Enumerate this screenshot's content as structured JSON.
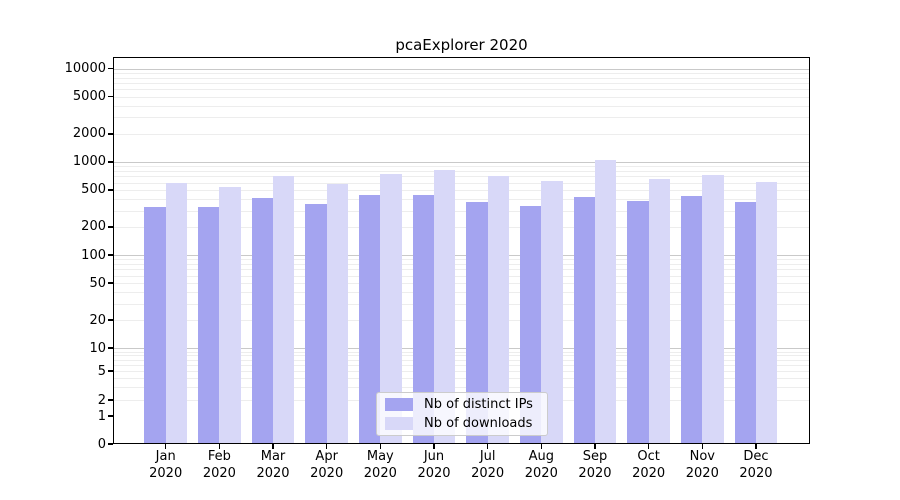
{
  "figure": {
    "title": "pcaExplorer 2020"
  },
  "chart_data": {
    "type": "bar",
    "title": "pcaExplorer 2020",
    "categories": [
      "Jan 2020",
      "Feb 2020",
      "Mar 2020",
      "Apr 2020",
      "May 2020",
      "Jun 2020",
      "Jul 2020",
      "Aug 2020",
      "Sep 2020",
      "Oct 2020",
      "Nov 2020",
      "Dec 2020"
    ],
    "series": [
      {
        "name": "Nb of distinct IPs",
        "color": "#a4a4f0",
        "values": [
          325,
          330,
          410,
          355,
          445,
          440,
          370,
          340,
          420,
          380,
          425,
          375
        ]
      },
      {
        "name": "Nb of downloads",
        "color": "#d8d8f8",
        "values": [
          600,
          535,
          710,
          580,
          745,
          815,
          700,
          620,
          1050,
          660,
          720,
          610
        ]
      }
    ],
    "y_axis": {
      "scale": "log-with-zero",
      "ticks": [
        0,
        1,
        2,
        5,
        10,
        20,
        50,
        100,
        200,
        500,
        1000,
        2000,
        5000,
        10000
      ],
      "ylim": [
        0,
        10000
      ]
    },
    "grid": {
      "major_color": "#c9c9c9",
      "minor_color": "#ededed",
      "spine_color": "#000000"
    },
    "legend": {
      "position": "inside-bottom-center",
      "border_color": "#cccccc",
      "background": "rgba(255,255,255,0.8)"
    }
  }
}
